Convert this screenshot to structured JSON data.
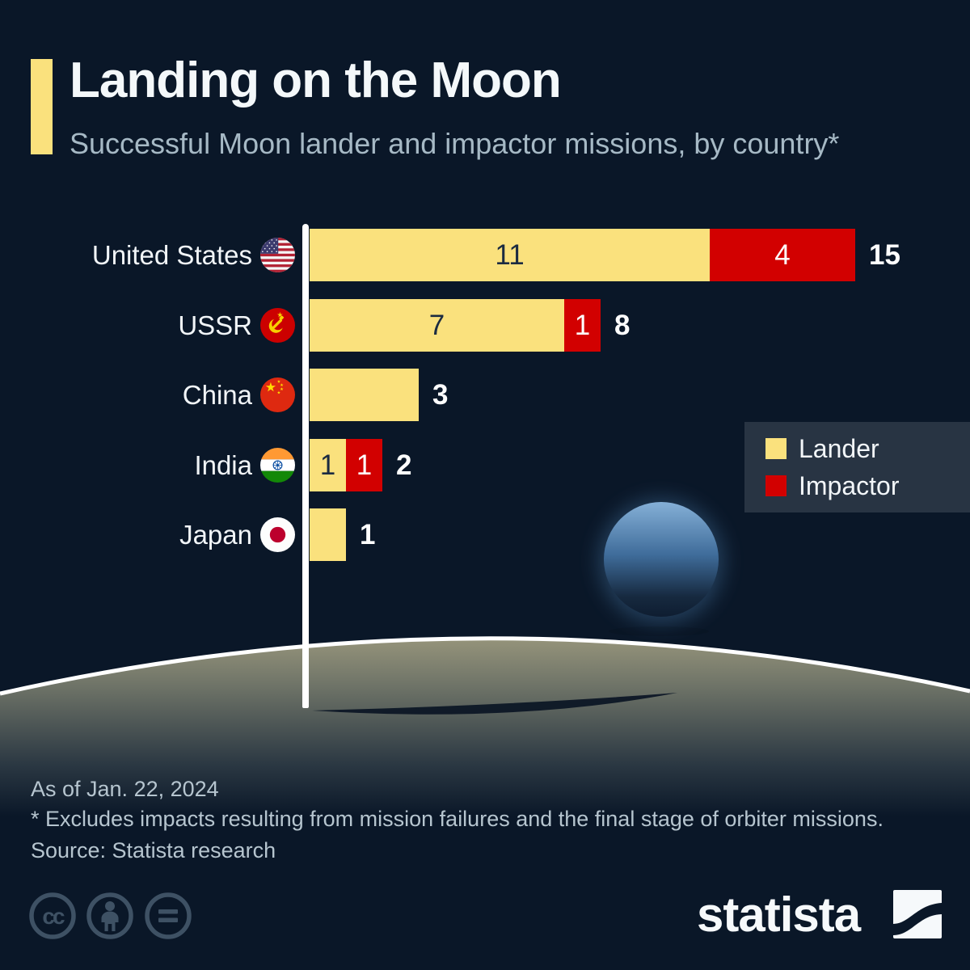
{
  "header": {
    "title": "Landing on the Moon",
    "subtitle": "Successful Moon lander and impactor missions, by country*"
  },
  "chart_data": {
    "type": "bar",
    "orientation": "horizontal",
    "stacked": true,
    "title": "Landing on the Moon",
    "subtitle": "Successful Moon lander and impactor missions, by country*",
    "categories": [
      "United States",
      "USSR",
      "China",
      "India",
      "Japan"
    ],
    "series": [
      {
        "name": "Lander",
        "color": "#fae17d",
        "values": [
          11,
          7,
          3,
          1,
          1
        ]
      },
      {
        "name": "Impactor",
        "color": "#d20000",
        "values": [
          4,
          1,
          0,
          1,
          0
        ]
      }
    ],
    "totals": [
      15,
      8,
      3,
      2,
      1
    ],
    "legend_position": "middle-right",
    "rows": [
      {
        "country": "United States",
        "flag_icon": "us-flag-icon",
        "lander": 11,
        "impactor": 4,
        "lander_label": "11",
        "impactor_label": "4",
        "total_label": "15"
      },
      {
        "country": "USSR",
        "flag_icon": "ussr-flag-icon",
        "lander": 7,
        "impactor": 1,
        "lander_label": "7",
        "impactor_label": "1",
        "total_label": "8"
      },
      {
        "country": "China",
        "flag_icon": "china-flag-icon",
        "lander": 3,
        "impactor": 0,
        "lander_label": "",
        "impactor_label": "",
        "total_label": "3"
      },
      {
        "country": "India",
        "flag_icon": "india-flag-icon",
        "lander": 1,
        "impactor": 1,
        "lander_label": "1",
        "impactor_label": "1",
        "total_label": "2"
      },
      {
        "country": "Japan",
        "flag_icon": "japan-flag-icon",
        "lander": 1,
        "impactor": 0,
        "lander_label": "",
        "impactor_label": "",
        "total_label": "1"
      }
    ]
  },
  "legend": {
    "items": [
      {
        "label": "Lander",
        "color": "#fae17d"
      },
      {
        "label": "Impactor",
        "color": "#d20000"
      }
    ]
  },
  "footer": {
    "as_of": "As of Jan. 22, 2024",
    "note": "* Excludes impacts resulting from mission failures and the final stage of orbiter missions.",
    "source": "Source: Statista research"
  },
  "branding": {
    "logo_text": "statista",
    "license_icons": [
      "cc-icon",
      "attribution-person-icon",
      "no-derivatives-equals-icon"
    ]
  },
  "colors": {
    "background": "#0a1728",
    "lander_yellow": "#fae17d",
    "impactor_red": "#d20000",
    "subtitle_gray": "#a6b9c5",
    "legend_panel": "#283443",
    "moon_surface": "#a9a484",
    "earth_blue": "#3f6c9a"
  }
}
